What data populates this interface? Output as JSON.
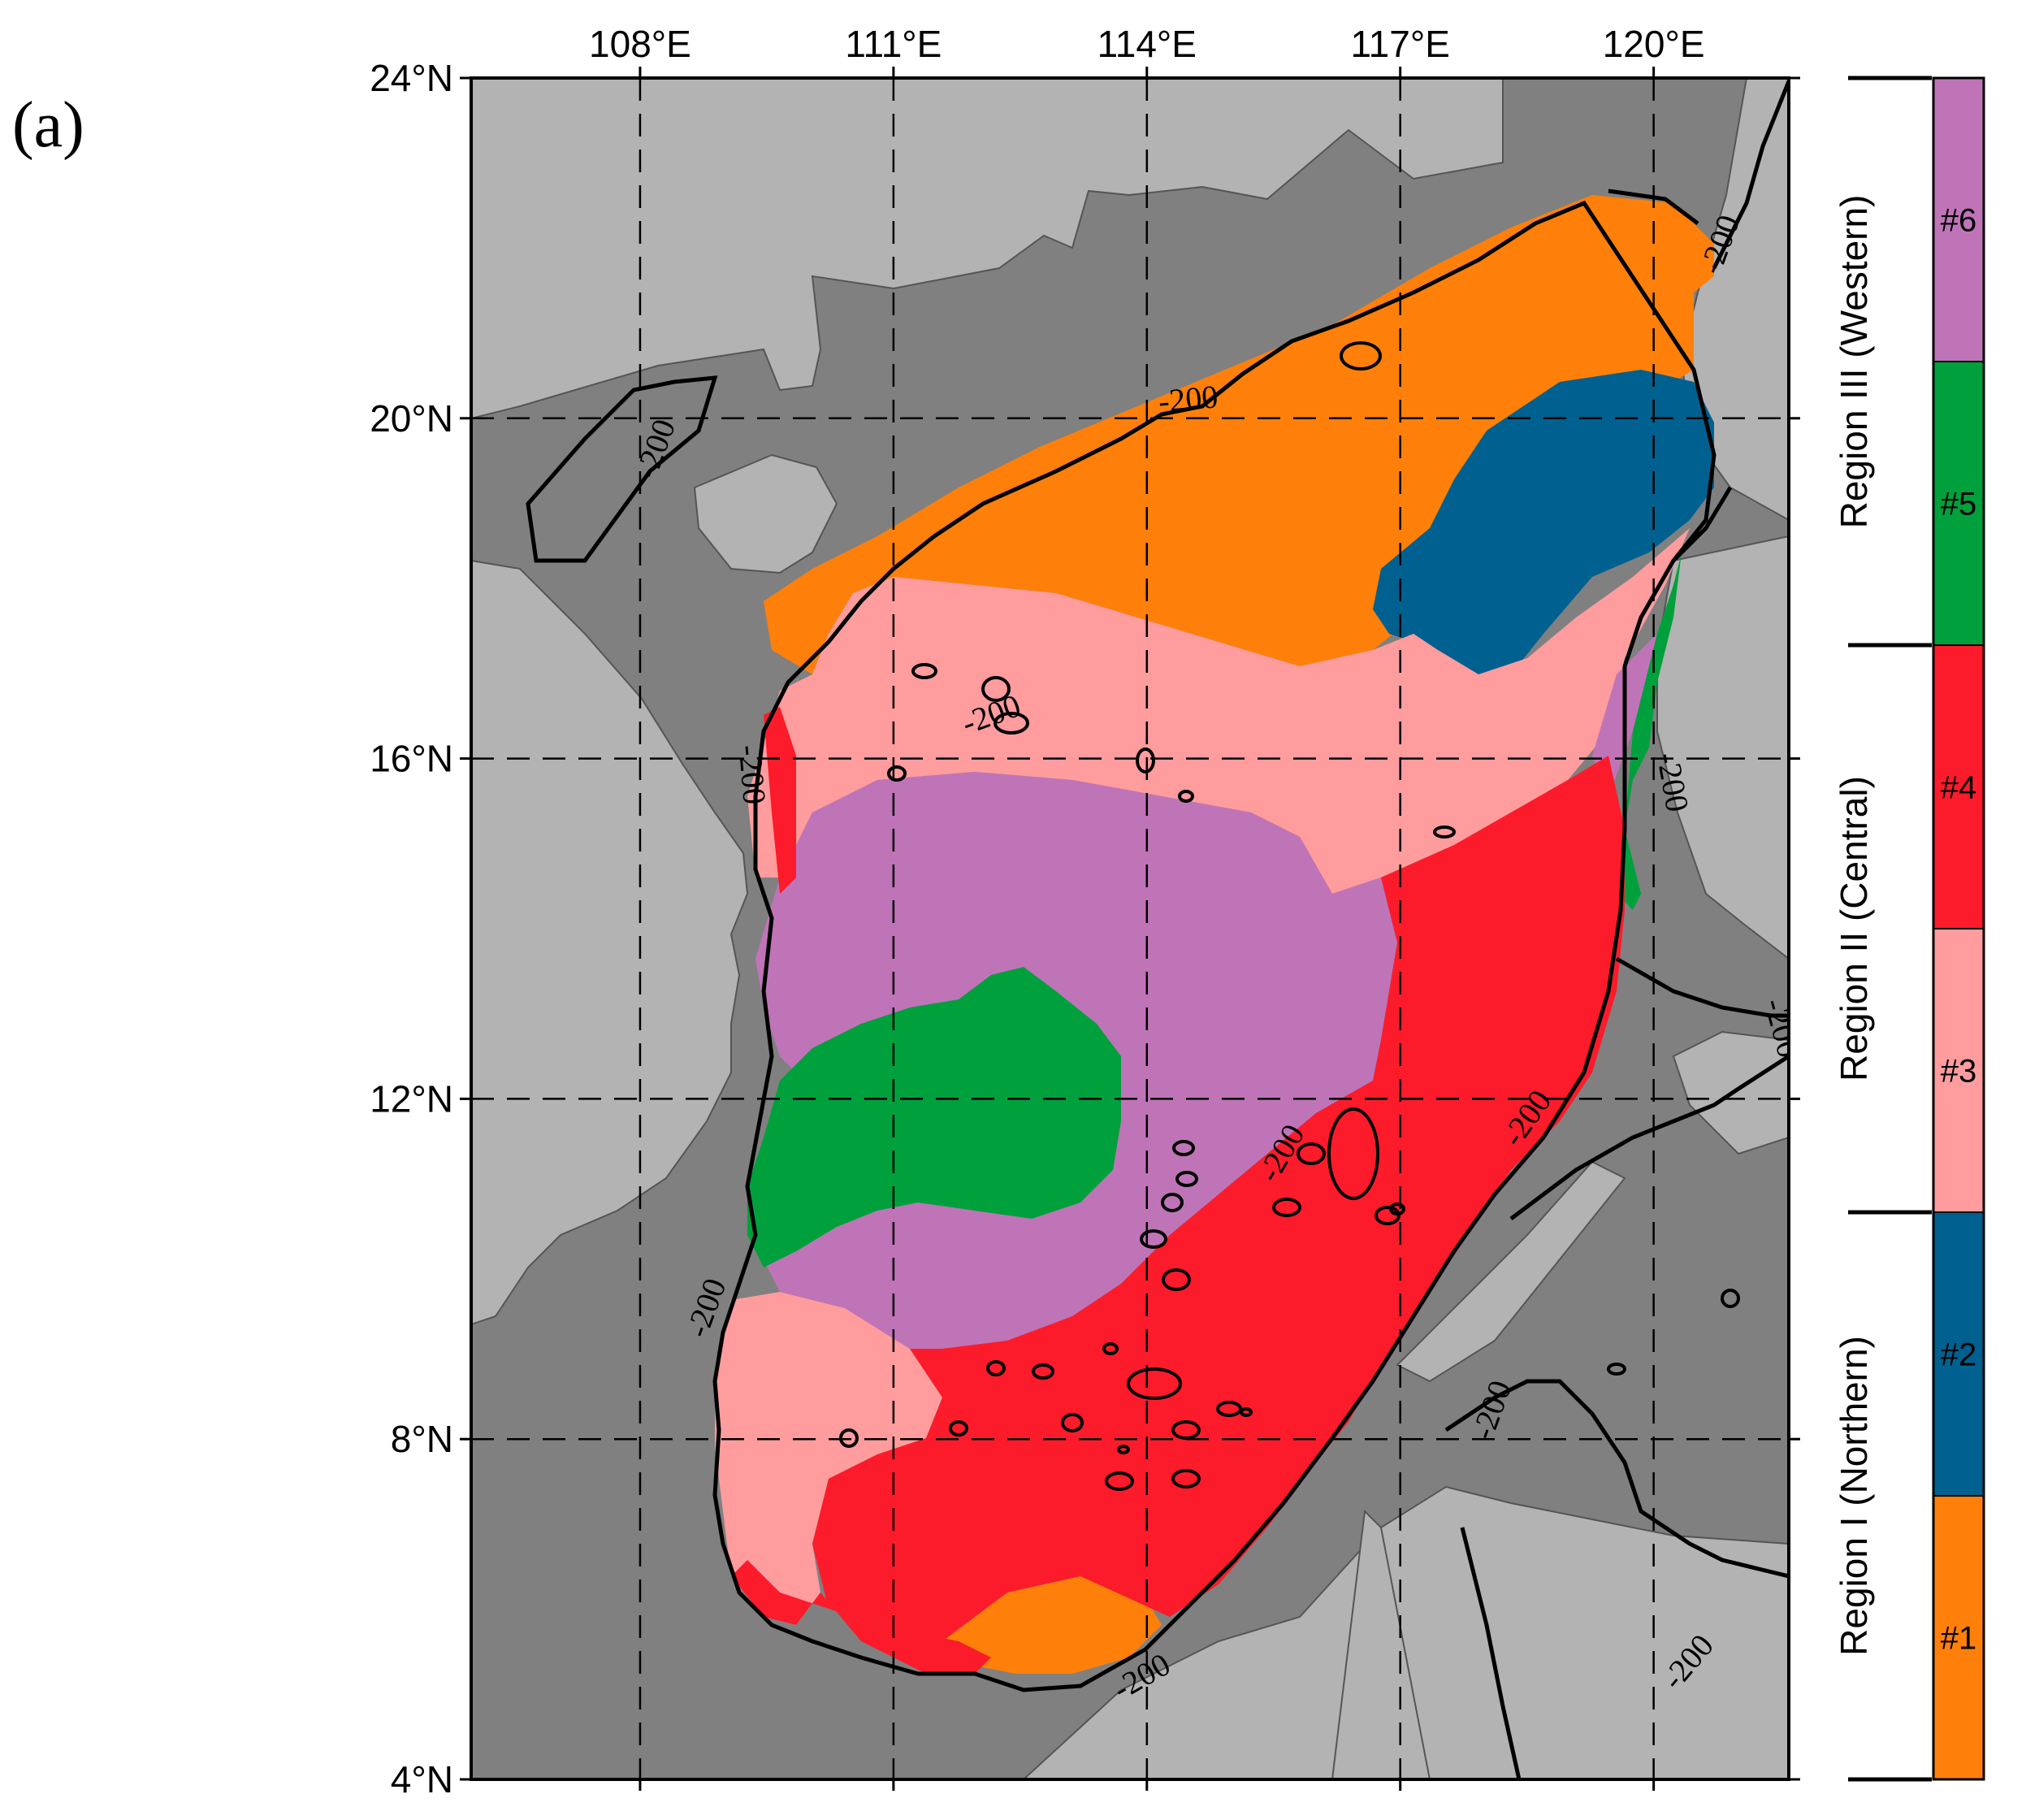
{
  "panel_label": "(a)",
  "map": {
    "lon_min": 106,
    "lon_max": 121.6,
    "lat_min": 4,
    "lat_max": 24,
    "lon_ticks": [
      {
        "value": 108,
        "label": "108°E"
      },
      {
        "value": 111,
        "label": "111°E"
      },
      {
        "value": 114,
        "label": "114°E"
      },
      {
        "value": 117,
        "label": "117°E"
      },
      {
        "value": 120,
        "label": "120°E"
      }
    ],
    "lat_ticks": [
      {
        "value": 24,
        "label": "24°N"
      },
      {
        "value": 20,
        "label": "20°N"
      },
      {
        "value": 16,
        "label": "16°N"
      },
      {
        "value": 12,
        "label": "12°N"
      },
      {
        "value": 8,
        "label": "8°N"
      },
      {
        "value": 4,
        "label": "4°N"
      }
    ],
    "grid": "dashed",
    "contour_level": "-200",
    "contour_labels": [
      {
        "text": "-200",
        "lon": 108.3,
        "lat": 19.6,
        "angle": -70
      },
      {
        "text": "-200",
        "lon": 114.5,
        "lat": 20.1,
        "angle": -5
      },
      {
        "text": "-200",
        "lon": 112.2,
        "lat": 16.4,
        "angle": -20
      },
      {
        "text": "-200",
        "lon": 109.2,
        "lat": 15.8,
        "angle": 85
      },
      {
        "text": "-200",
        "lon": 120.1,
        "lat": 15.7,
        "angle": 80
      },
      {
        "text": "-200",
        "lon": 120.9,
        "lat": 22.0,
        "angle": -70
      },
      {
        "text": "-200",
        "lon": 121.4,
        "lat": 12.8,
        "angle": 75
      },
      {
        "text": "-200",
        "lon": 115.7,
        "lat": 11.3,
        "angle": -60
      },
      {
        "text": "-200",
        "lon": 118.6,
        "lat": 11.7,
        "angle": -55
      },
      {
        "text": "-200",
        "lon": 108.9,
        "lat": 9.5,
        "angle": -70
      },
      {
        "text": "-200",
        "lon": 118.2,
        "lat": 8.3,
        "angle": -70
      },
      {
        "text": "-200",
        "lon": 114.0,
        "lat": 5.1,
        "angle": -30
      },
      {
        "text": "-200",
        "lon": 120.5,
        "lat": 5.3,
        "angle": -50
      }
    ],
    "colors": {
      "ocean_deep": "#808080",
      "land": "#b3b3b3"
    }
  },
  "legend": {
    "classes": [
      {
        "label": "#6",
        "color": "#c074b8",
        "region": "Region III (Western)"
      },
      {
        "label": "#5",
        "color": "#00a03c",
        "region": "Region III (Western)"
      },
      {
        "label": "#4",
        "color": "#fc1b2a",
        "region": "Region II (Central)"
      },
      {
        "label": "#3",
        "color": "#fe9c9e",
        "region": "Region II (Central)"
      },
      {
        "label": "#2",
        "color": "#00608f",
        "region": "Region I (Northern)"
      },
      {
        "label": "#1",
        "color": "#fe800b",
        "region": "Region I (Northern)"
      }
    ],
    "regions": [
      {
        "label": "Region III (Western)"
      },
      {
        "label": "Region II (Central)"
      },
      {
        "label": "Region I (Northern)"
      }
    ]
  }
}
